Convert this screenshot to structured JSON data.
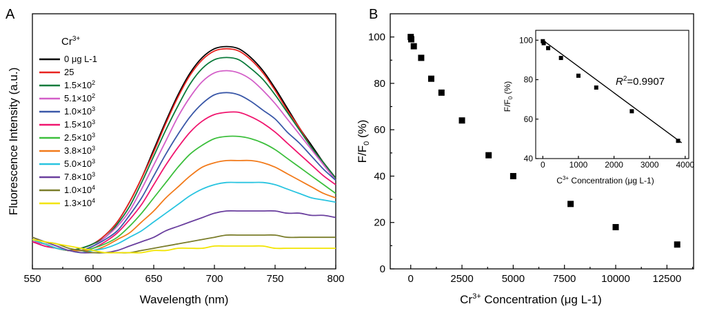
{
  "chart_data": [
    {
      "panel": "A",
      "type": "line",
      "xlabel": "Wavelength (nm)",
      "ylabel": "Fluorescence Intensity (a.u.)",
      "xlim": [
        550,
        800
      ],
      "ylim": [
        0,
        1.0
      ],
      "x_ticks": [
        550,
        600,
        650,
        700,
        750,
        800
      ],
      "legend_title": "Cr3+",
      "legend_position": "top-left",
      "wavelengths": [
        550,
        560,
        570,
        580,
        590,
        600,
        610,
        620,
        630,
        640,
        650,
        660,
        670,
        680,
        690,
        700,
        710,
        720,
        730,
        740,
        750,
        760,
        770,
        780,
        790,
        800
      ],
      "series": [
        {
          "name": "0 μg L-1",
          "label_main": "0 μg L-1",
          "label_exp": "",
          "color": "#000000",
          "values": [
            0.08,
            0.07,
            0.05,
            0.04,
            0.05,
            0.07,
            0.11,
            0.17,
            0.26,
            0.37,
            0.5,
            0.63,
            0.75,
            0.85,
            0.92,
            0.96,
            0.97,
            0.96,
            0.92,
            0.86,
            0.78,
            0.69,
            0.6,
            0.52,
            0.44,
            0.37
          ]
        },
        {
          "name": "25",
          "label_main": "25",
          "label_exp": "",
          "color": "#e8231f",
          "values": [
            0.08,
            0.07,
            0.05,
            0.04,
            0.05,
            0.07,
            0.11,
            0.17,
            0.26,
            0.37,
            0.49,
            0.62,
            0.74,
            0.84,
            0.91,
            0.95,
            0.96,
            0.95,
            0.91,
            0.85,
            0.77,
            0.68,
            0.6,
            0.51,
            0.44,
            0.37
          ]
        },
        {
          "name": "1.5×10^2",
          "label_main": "1.5×10",
          "label_exp": "2",
          "color": "#0a7a3a",
          "values": [
            0.08,
            0.07,
            0.05,
            0.04,
            0.05,
            0.07,
            0.1,
            0.16,
            0.24,
            0.35,
            0.47,
            0.59,
            0.7,
            0.8,
            0.87,
            0.91,
            0.92,
            0.91,
            0.87,
            0.82,
            0.75,
            0.67,
            0.59,
            0.51,
            0.44,
            0.37
          ]
        },
        {
          "name": "5.1×10^2",
          "label_main": "5.1×10",
          "label_exp": "2",
          "color": "#d35ec8",
          "values": [
            0.08,
            0.07,
            0.05,
            0.04,
            0.04,
            0.06,
            0.1,
            0.15,
            0.22,
            0.32,
            0.43,
            0.54,
            0.65,
            0.74,
            0.81,
            0.85,
            0.86,
            0.85,
            0.82,
            0.77,
            0.71,
            0.64,
            0.57,
            0.5,
            0.43,
            0.36
          ]
        },
        {
          "name": "1.0×10^3",
          "label_main": "1.0×10",
          "label_exp": "3",
          "color": "#3a58a8",
          "values": [
            0.08,
            0.06,
            0.05,
            0.04,
            0.04,
            0.06,
            0.09,
            0.13,
            0.2,
            0.28,
            0.38,
            0.48,
            0.57,
            0.65,
            0.71,
            0.75,
            0.76,
            0.75,
            0.72,
            0.68,
            0.64,
            0.58,
            0.53,
            0.47,
            0.41,
            0.36
          ]
        },
        {
          "name": "1.5×10^3",
          "label_main": "1.5×10",
          "label_exp": "3",
          "color": "#f0156e",
          "values": [
            0.08,
            0.06,
            0.05,
            0.04,
            0.04,
            0.05,
            0.08,
            0.12,
            0.18,
            0.25,
            0.34,
            0.43,
            0.51,
            0.58,
            0.63,
            0.66,
            0.67,
            0.67,
            0.65,
            0.62,
            0.58,
            0.53,
            0.48,
            0.43,
            0.38,
            0.34
          ]
        },
        {
          "name": "2.5×10^3",
          "label_main": "2.5×10",
          "label_exp": "3",
          "color": "#3cbf3c",
          "values": [
            0.09,
            0.07,
            0.05,
            0.04,
            0.04,
            0.05,
            0.07,
            0.1,
            0.15,
            0.21,
            0.28,
            0.35,
            0.42,
            0.48,
            0.52,
            0.55,
            0.56,
            0.56,
            0.55,
            0.53,
            0.5,
            0.46,
            0.42,
            0.38,
            0.34,
            0.3
          ]
        },
        {
          "name": "3.8×10^3",
          "label_main": "3.8×10",
          "label_exp": "3",
          "color": "#f27a1a",
          "values": [
            0.09,
            0.07,
            0.05,
            0.04,
            0.04,
            0.04,
            0.06,
            0.09,
            0.12,
            0.17,
            0.22,
            0.28,
            0.33,
            0.38,
            0.42,
            0.44,
            0.45,
            0.45,
            0.45,
            0.44,
            0.42,
            0.39,
            0.36,
            0.33,
            0.3,
            0.28
          ]
        },
        {
          "name": "5.0×10^3",
          "label_main": "5.0×10",
          "label_exp": "3",
          "color": "#29c4e0",
          "values": [
            0.09,
            0.07,
            0.05,
            0.04,
            0.03,
            0.04,
            0.05,
            0.07,
            0.1,
            0.13,
            0.17,
            0.21,
            0.25,
            0.29,
            0.32,
            0.34,
            0.35,
            0.35,
            0.35,
            0.35,
            0.34,
            0.32,
            0.3,
            0.28,
            0.27,
            0.26
          ]
        },
        {
          "name": "7.8×10^3",
          "label_main": "7.8×10",
          "label_exp": "3",
          "color": "#6a3f9e",
          "values": [
            0.1,
            0.08,
            0.06,
            0.04,
            0.03,
            0.03,
            0.03,
            0.04,
            0.06,
            0.08,
            0.1,
            0.13,
            0.15,
            0.17,
            0.19,
            0.21,
            0.22,
            0.22,
            0.22,
            0.22,
            0.22,
            0.21,
            0.21,
            0.2,
            0.2,
            0.19
          ]
        },
        {
          "name": "1.0×10^4",
          "label_main": "1.0×10",
          "label_exp": "4",
          "color": "#7a7d2a",
          "values": [
            0.1,
            0.08,
            0.07,
            0.05,
            0.04,
            0.03,
            0.03,
            0.03,
            0.03,
            0.04,
            0.05,
            0.06,
            0.07,
            0.08,
            0.09,
            0.1,
            0.11,
            0.11,
            0.11,
            0.11,
            0.11,
            0.1,
            0.1,
            0.1,
            0.1,
            0.1
          ]
        },
        {
          "name": "1.3×10^4",
          "label_main": "1.3×10",
          "label_exp": "4",
          "color": "#f2e400",
          "values": [
            0.09,
            0.08,
            0.07,
            0.06,
            0.05,
            0.04,
            0.03,
            0.03,
            0.03,
            0.03,
            0.04,
            0.04,
            0.05,
            0.05,
            0.05,
            0.06,
            0.06,
            0.06,
            0.06,
            0.06,
            0.05,
            0.05,
            0.05,
            0.05,
            0.05,
            0.05
          ]
        }
      ]
    },
    {
      "panel": "B",
      "type": "scatter",
      "xlabel": "Concentration (μg L-1)",
      "xlabel_prefix": "Cr",
      "xlabel_sup": "3+",
      "ylabel": "F/F0 (%)",
      "ylabel_main": "F/F",
      "ylabel_sub": "0",
      "ylabel_unit": "(%)",
      "xlim": [
        -1000,
        13800
      ],
      "ylim": [
        0,
        110
      ],
      "x_ticks": [
        0,
        2500,
        5000,
        7500,
        10000,
        12500
      ],
      "y_ticks": [
        0,
        20,
        40,
        60,
        80,
        100
      ],
      "points": [
        {
          "x": 0,
          "y": 100
        },
        {
          "x": 25,
          "y": 99
        },
        {
          "x": 150,
          "y": 96
        },
        {
          "x": 510,
          "y": 91
        },
        {
          "x": 1000,
          "y": 82
        },
        {
          "x": 1500,
          "y": 76
        },
        {
          "x": 2500,
          "y": 64
        },
        {
          "x": 3800,
          "y": 49
        },
        {
          "x": 5000,
          "y": 40
        },
        {
          "x": 7800,
          "y": 28
        },
        {
          "x": 10000,
          "y": 18
        },
        {
          "x": 13000,
          "y": 10.5
        }
      ],
      "inset": {
        "type": "scatter",
        "xlabel": "Concentration (μg L-1)",
        "xlabel_prefix": "C",
        "xlabel_sup": "3+",
        "ylabel": "F/F0 (%)",
        "ylabel_main": "F/F",
        "ylabel_sub": "0",
        "ylabel_unit": "(%)",
        "xlim": [
          -200,
          4100
        ],
        "ylim": [
          40,
          105
        ],
        "x_ticks": [
          0,
          1000,
          2000,
          3000,
          4000
        ],
        "y_ticks": [
          40,
          60,
          80,
          100
        ],
        "annotation_main": "R",
        "annotation_sup": "2",
        "annotation_value": "=0.9907",
        "fit_line": {
          "x": [
            0,
            3900
          ],
          "y": [
            100,
            48
          ]
        },
        "points": [
          {
            "x": 0,
            "y": 99.5
          },
          {
            "x": 25,
            "y": 98.5
          },
          {
            "x": 150,
            "y": 96
          },
          {
            "x": 510,
            "y": 91
          },
          {
            "x": 1000,
            "y": 82
          },
          {
            "x": 1500,
            "y": 76
          },
          {
            "x": 2500,
            "y": 64
          },
          {
            "x": 3800,
            "y": 49
          }
        ]
      }
    }
  ]
}
